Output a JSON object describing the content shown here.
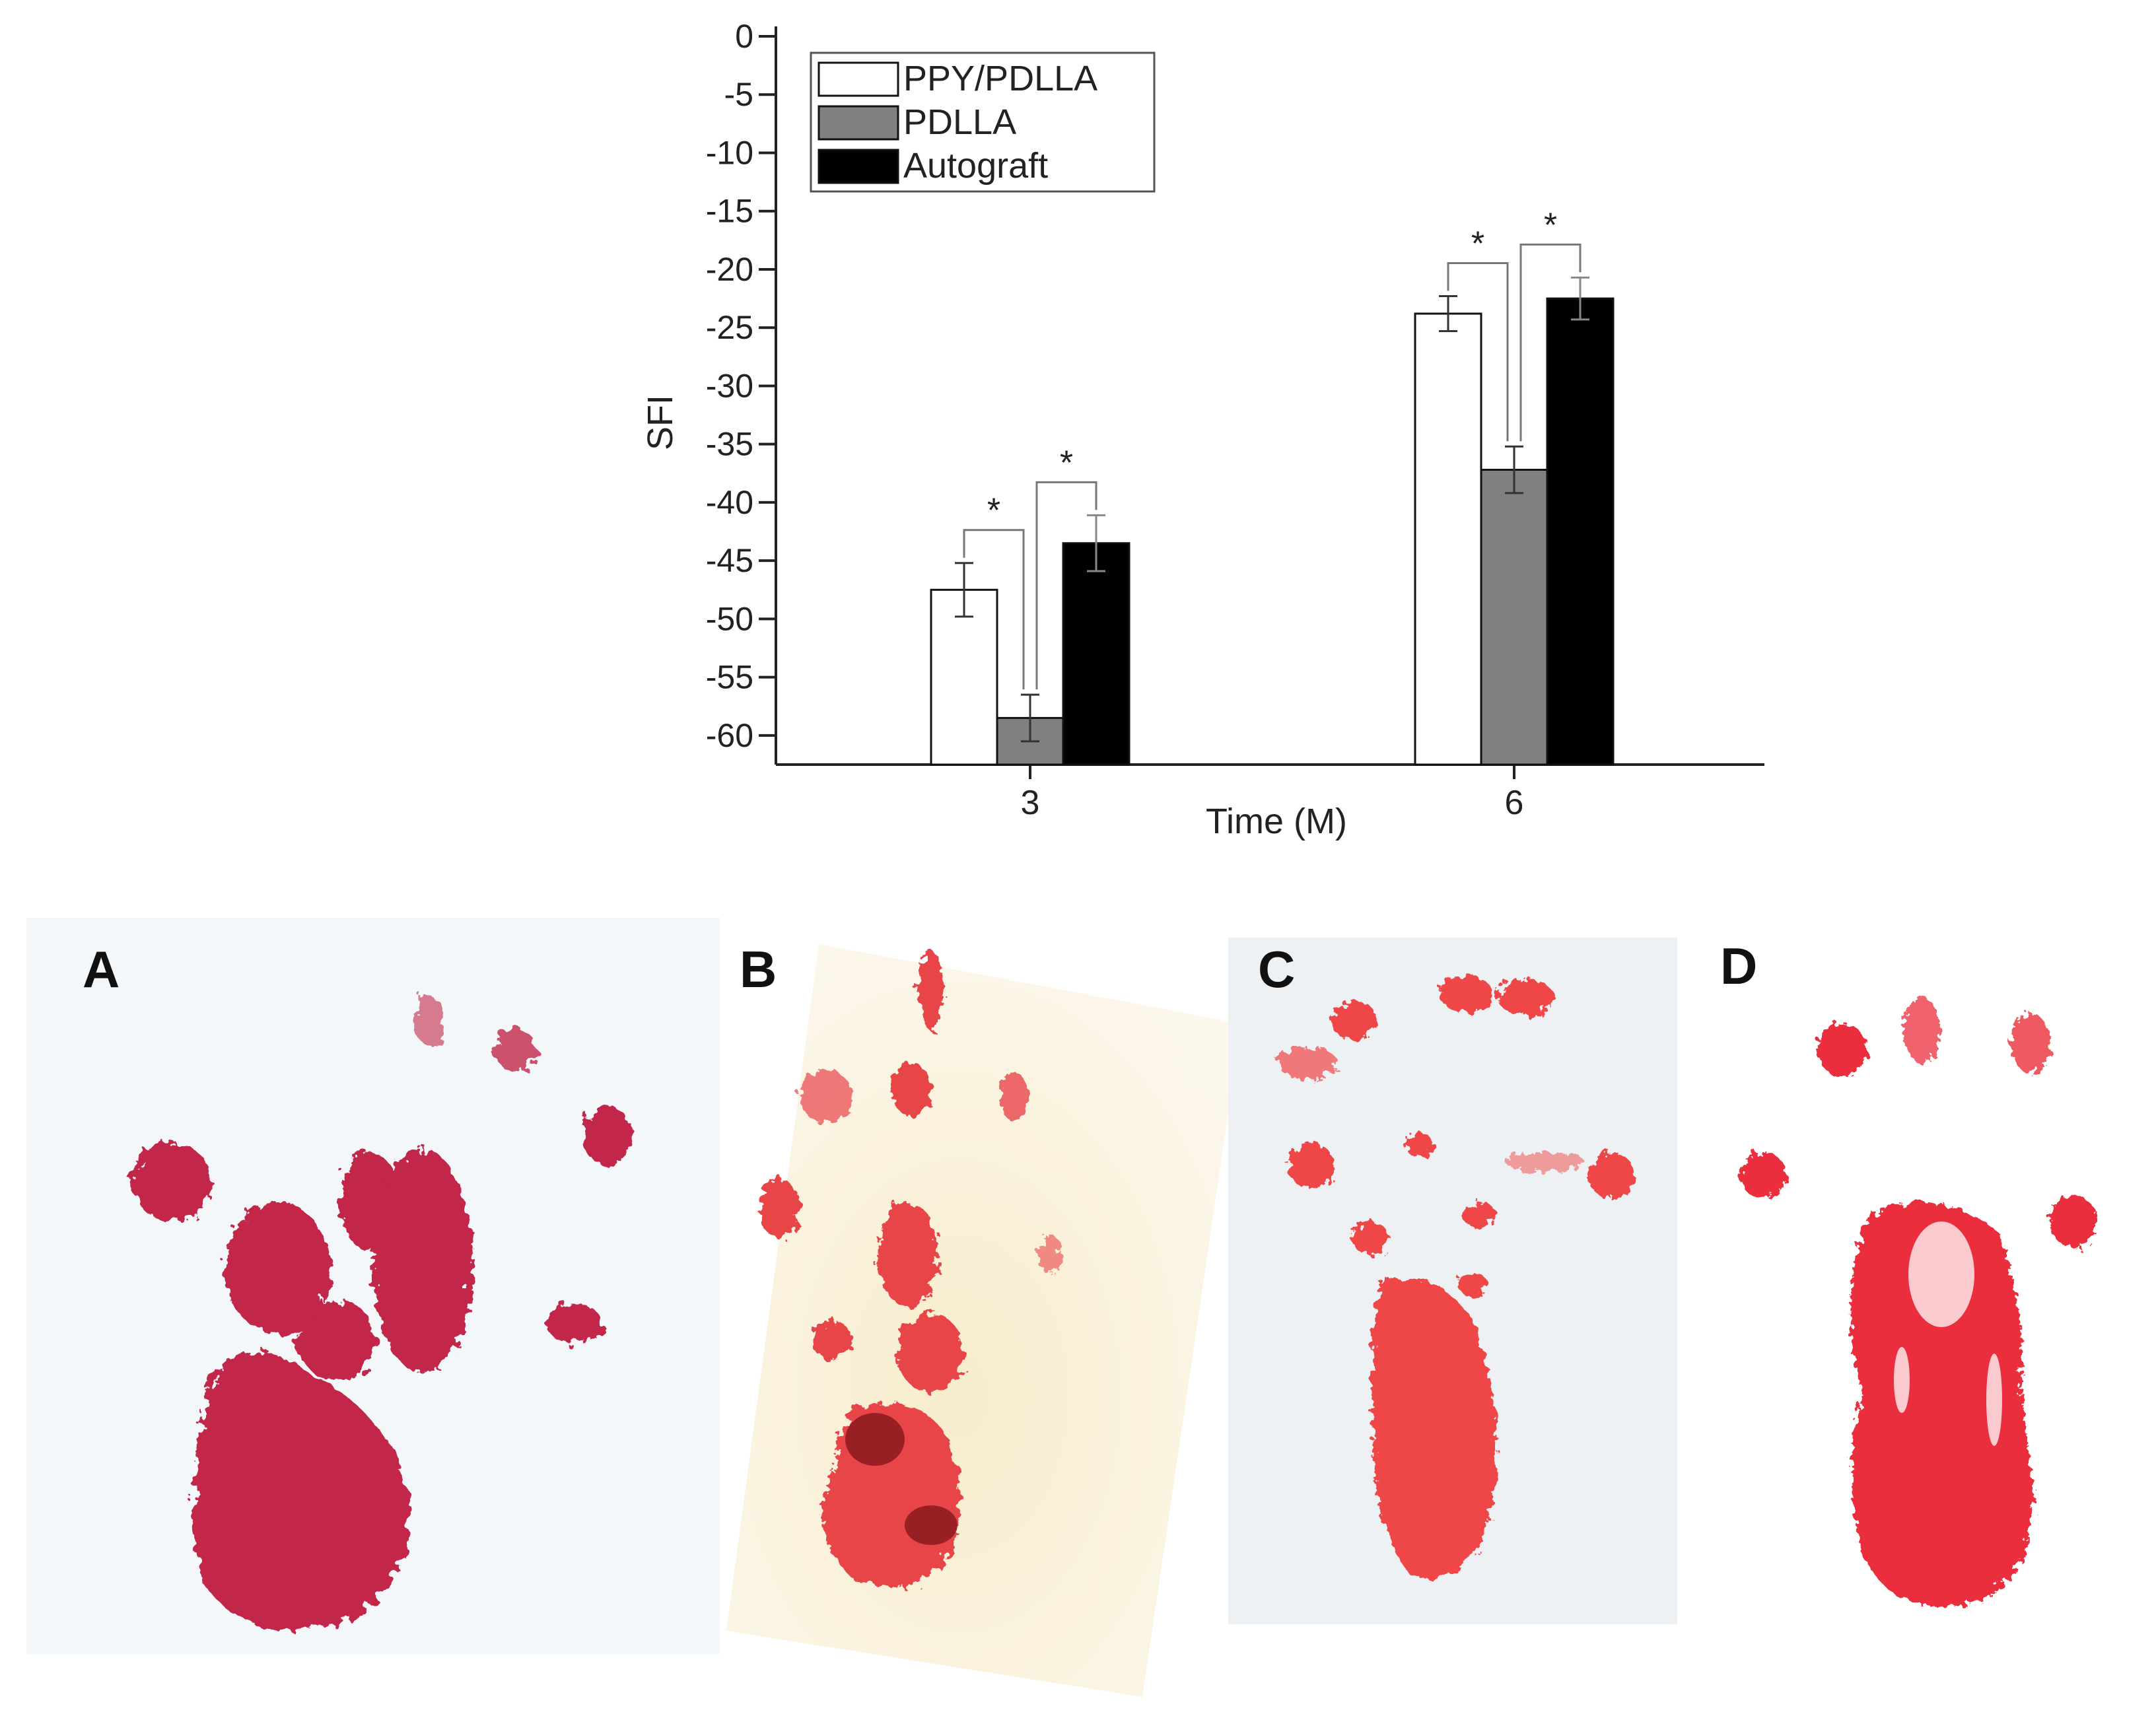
{
  "chart_data": {
    "type": "bar",
    "xlabel": "Time (M)",
    "ylabel": "SFI",
    "ylim": [
      -62.5,
      0
    ],
    "yticks": [
      0,
      -5,
      -10,
      -15,
      -20,
      -25,
      -30,
      -35,
      -40,
      -45,
      -50,
      -55,
      -60
    ],
    "categories": [
      "3",
      "6"
    ],
    "legend_position": "top-left",
    "grid": false,
    "series": [
      {
        "name": "PPY/PDLLA",
        "values": [
          -47.5,
          -23.8
        ],
        "errors": [
          2.3,
          1.5
        ],
        "color": "#ffffff"
      },
      {
        "name": "PDLLA",
        "values": [
          -58.5,
          -37.2
        ],
        "errors": [
          2.0,
          2.0
        ],
        "color": "#808080"
      },
      {
        "name": "Autograft",
        "values": [
          -43.5,
          -22.5
        ],
        "errors": [
          2.4,
          1.8
        ],
        "color": "#000000"
      }
    ],
    "annotations": [
      {
        "text": "*",
        "category": "3",
        "between": [
          "PPY/PDLLA",
          "PDLLA"
        ]
      },
      {
        "text": "*",
        "category": "3",
        "between": [
          "PDLLA",
          "Autograft"
        ]
      },
      {
        "text": "*",
        "category": "6",
        "between": [
          "PPY/PDLLA",
          "PDLLA"
        ]
      },
      {
        "text": "*",
        "category": "6",
        "between": [
          "PDLLA",
          "Autograft"
        ]
      }
    ]
  },
  "panels": [
    {
      "label": "A",
      "ink": "#c2254a",
      "background": "#f4f7fa"
    },
    {
      "label": "B",
      "ink": "#e8454a",
      "background": "#fbf5e4"
    },
    {
      "label": "C",
      "ink": "#ef4747",
      "background": "#edf1f3"
    },
    {
      "label": "D",
      "ink": "#ea2f3c",
      "background": "#ffffff"
    }
  ]
}
